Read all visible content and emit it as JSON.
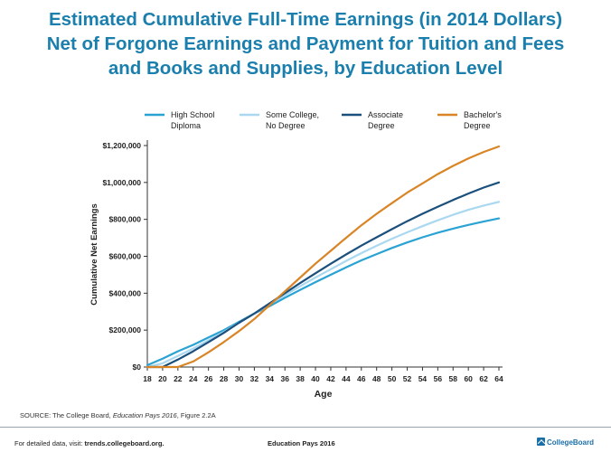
{
  "header": {
    "title_lines": [
      "Estimated Cumulative Full-Time Earnings (in 2014 Dollars)",
      "Net of Forgone Earnings and Payment for Tuition and Fees",
      "and Books and Supplies, by Education Level"
    ]
  },
  "chart_data": {
    "type": "line",
    "title": "Estimated Cumulative Full-Time Earnings (in 2014 Dollars) Net of Forgone Earnings and Payment for Tuition and Fees and Books and Supplies, by Education Level",
    "xlabel": "Age",
    "ylabel": "Cumulative Net Earnings",
    "xlim": [
      18,
      64
    ],
    "ylim": [
      0,
      1200000
    ],
    "x_ticks": [
      18,
      20,
      22,
      24,
      26,
      28,
      30,
      32,
      34,
      36,
      38,
      40,
      42,
      44,
      46,
      48,
      50,
      52,
      54,
      56,
      58,
      60,
      62,
      64
    ],
    "y_ticks": [
      0,
      200000,
      400000,
      600000,
      800000,
      1000000,
      1200000
    ],
    "y_tick_labels": [
      "$0",
      "$200,000",
      "$400,000",
      "$600,000",
      "$800,000",
      "$1,000,000",
      "$1,200,000"
    ],
    "grid": false,
    "legend_position": "top",
    "x": [
      18,
      20,
      22,
      24,
      26,
      28,
      30,
      32,
      34,
      36,
      38,
      40,
      42,
      44,
      46,
      48,
      50,
      52,
      54,
      56,
      58,
      60,
      62,
      64
    ],
    "series": [
      {
        "name": "High School Diploma",
        "legend_lines": [
          "High School",
          "Diploma"
        ],
        "color": "#2aa3d4",
        "values": [
          10000,
          45000,
          85000,
          120000,
          160000,
          200000,
          245000,
          290000,
          330000,
          375000,
          418000,
          460000,
          500000,
          540000,
          578000,
          612000,
          645000,
          675000,
          703000,
          728000,
          750000,
          770000,
          788000,
          805000
        ]
      },
      {
        "name": "Some College, No Degree",
        "legend_lines": [
          "Some College,",
          "No Degree"
        ],
        "color": "#a9d8f0",
        "values": [
          0,
          20000,
          60000,
          100000,
          145000,
          190000,
          240000,
          290000,
          340000,
          390000,
          438000,
          485000,
          530000,
          575000,
          617000,
          657000,
          695000,
          730000,
          763000,
          795000,
          825000,
          852000,
          875000,
          895000
        ]
      },
      {
        "name": "Associate Degree",
        "legend_lines": [
          "Associate",
          "Degree"
        ],
        "color": "#1b4f7c",
        "values": [
          0,
          0,
          40000,
          85000,
          135000,
          185000,
          240000,
          290000,
          345000,
          400000,
          455000,
          508000,
          560000,
          610000,
          658000,
          703000,
          747000,
          790000,
          830000,
          868000,
          905000,
          940000,
          972000,
          1000000
        ]
      },
      {
        "name": "Bachelor's Degree",
        "legend_lines": [
          "Bachelor's",
          "Degree"
        ],
        "color": "#d98526",
        "values": [
          0,
          0,
          0,
          30000,
          80000,
          135000,
          195000,
          260000,
          335000,
          410000,
          485000,
          560000,
          630000,
          700000,
          768000,
          830000,
          888000,
          945000,
          995000,
          1045000,
          1090000,
          1130000,
          1165000,
          1195000
        ]
      }
    ]
  },
  "source": {
    "prefix": "SOURCE: The College Board, ",
    "italic": "Education Pays 2016",
    "suffix": ", Figure 2.2A"
  },
  "footer": {
    "left_prefix": "For detailed data, visit: ",
    "left_link": "trends.collegeboard.org.",
    "center": "Education Pays 2016",
    "logo_text": "CollegeBoard"
  }
}
